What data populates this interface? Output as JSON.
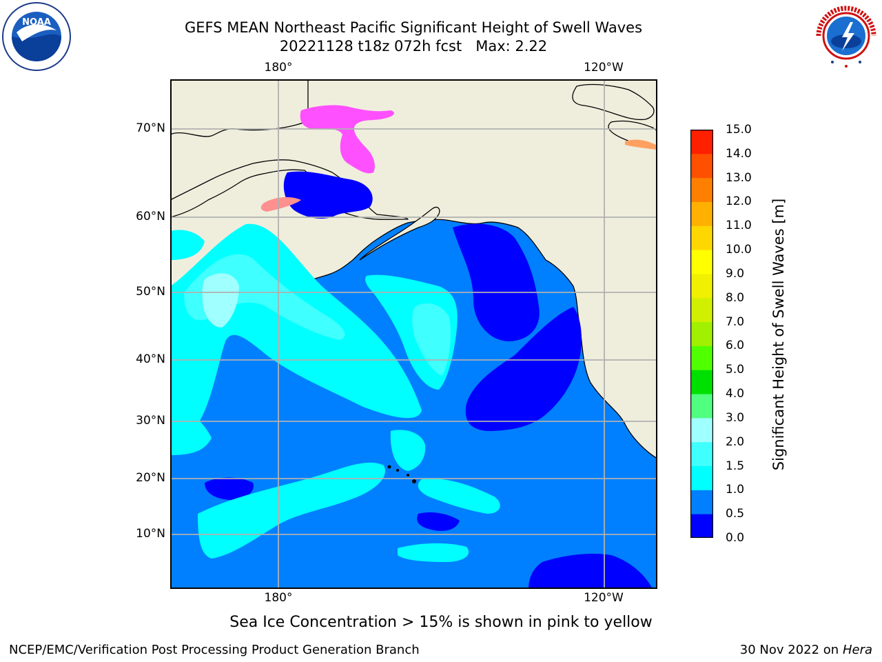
{
  "title_line1": "GEFS MEAN Northeast Pacific Significant Height of Swell Waves",
  "title_line2": "20221128 t18z 072h fcst   Max: 2.22",
  "lon_labels": [
    "180°",
    "120°W"
  ],
  "lat_labels": [
    "70°N",
    "60°N",
    "50°N",
    "40°N",
    "30°N",
    "20°N",
    "10°N"
  ],
  "colorbar": {
    "label": "Significant Height of Swell Waves [m]",
    "ticks": [
      "15.0",
      "14.0",
      "13.0",
      "12.0",
      "11.0",
      "10.0",
      "9.0",
      "8.0",
      "7.0",
      "6.0",
      "5.0",
      "4.0",
      "3.0",
      "2.0",
      "1.5",
      "1.0",
      "0.5",
      "0.0"
    ],
    "colors": [
      "#0000ff",
      "#0080ff",
      "#00ffff",
      "#40ffff",
      "#a0ffff",
      "#50ff80",
      "#00e000",
      "#50ff00",
      "#a0f000",
      "#d0f000",
      "#f0f000",
      "#ffff00",
      "#ffd700",
      "#ffb000",
      "#ff8000",
      "#ff5000",
      "#ff2000"
    ]
  },
  "ice_note": "Sea Ice Concentration > 15% is shown in pink to yellow",
  "footer_left": "NCEP/EMC/Verification Post Processing Product Generation Branch",
  "footer_right_prefix": "30 Nov 2022 on",
  "footer_right_host": "Hera",
  "colors": {
    "land": "#efeedd",
    "ocean_mid": "#0080ff",
    "ocean_low": "#0000ff",
    "swell_1": "#00ffff",
    "swell_2": "#40ffff",
    "swell_3": "#a0ffff",
    "ice": "#ff50ff",
    "grid": "#b0b0b0"
  }
}
